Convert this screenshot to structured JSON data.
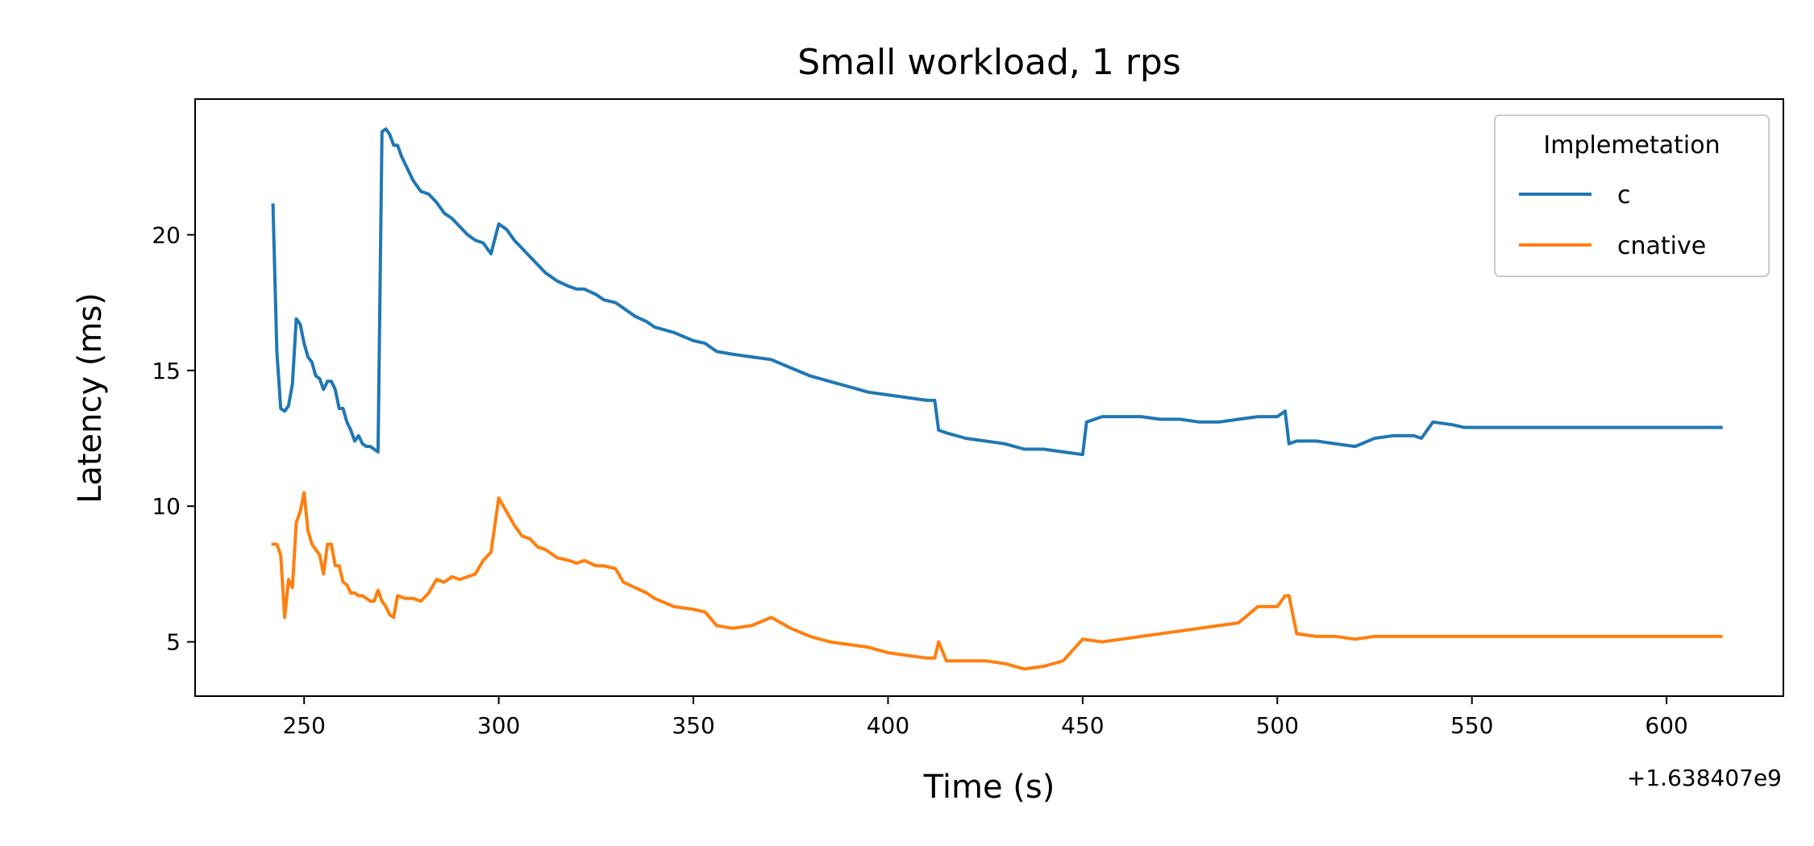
{
  "chart_data": {
    "type": "line",
    "title": "Small workload, 1 rps",
    "xlabel": "Time (s)",
    "ylabel": "Latency (ms)",
    "x_offset_label": "+1.638407e9",
    "xlim": [
      222,
      630
    ],
    "ylim": [
      3,
      25
    ],
    "xticks": [
      250,
      300,
      350,
      400,
      450,
      500,
      550,
      600
    ],
    "yticks": [
      5,
      10,
      15,
      20
    ],
    "grid": false,
    "legend": {
      "title": "Implemetation",
      "position": "top-right"
    },
    "series": [
      {
        "name": "c",
        "color": "#1f77b4",
        "x": [
          242,
          243,
          244,
          245,
          246,
          247,
          248,
          249,
          250,
          251,
          252,
          253,
          254,
          255,
          256,
          257,
          258,
          259,
          260,
          261,
          262,
          263,
          264,
          265,
          266,
          267,
          268,
          269,
          270,
          271,
          272,
          273,
          274,
          275,
          276,
          278,
          280,
          282,
          284,
          286,
          288,
          290,
          292,
          294,
          296,
          298,
          300,
          302,
          304,
          306,
          308,
          310,
          312,
          315,
          318,
          320,
          322,
          325,
          327,
          330,
          332,
          335,
          338,
          340,
          345,
          350,
          353,
          356,
          360,
          365,
          370,
          375,
          380,
          385,
          390,
          395,
          400,
          405,
          410,
          412,
          413,
          415,
          420,
          425,
          430,
          435,
          440,
          445,
          450,
          451,
          455,
          460,
          465,
          470,
          475,
          480,
          485,
          490,
          495,
          500,
          502,
          503,
          505,
          510,
          515,
          520,
          525,
          530,
          535,
          537,
          540,
          545,
          548,
          550,
          600,
          614
        ],
        "y": [
          21.1,
          15.7,
          13.6,
          13.5,
          13.7,
          14.5,
          16.9,
          16.7,
          16.0,
          15.5,
          15.3,
          14.8,
          14.7,
          14.3,
          14.6,
          14.6,
          14.3,
          13.6,
          13.6,
          13.1,
          12.8,
          12.4,
          12.6,
          12.3,
          12.2,
          12.2,
          12.1,
          12.0,
          23.8,
          23.9,
          23.7,
          23.3,
          23.3,
          22.9,
          22.6,
          22.0,
          21.6,
          21.5,
          21.2,
          20.8,
          20.6,
          20.3,
          20.0,
          19.8,
          19.7,
          19.3,
          20.4,
          20.2,
          19.8,
          19.5,
          19.2,
          18.9,
          18.6,
          18.3,
          18.1,
          18.0,
          18.0,
          17.8,
          17.6,
          17.5,
          17.3,
          17.0,
          16.8,
          16.6,
          16.4,
          16.1,
          16.0,
          15.7,
          15.6,
          15.5,
          15.4,
          15.1,
          14.8,
          14.6,
          14.4,
          14.2,
          14.1,
          14.0,
          13.9,
          13.9,
          12.8,
          12.7,
          12.5,
          12.4,
          12.3,
          12.1,
          12.1,
          12.0,
          11.9,
          13.1,
          13.3,
          13.3,
          13.3,
          13.2,
          13.2,
          13.1,
          13.1,
          13.2,
          13.3,
          13.3,
          13.5,
          12.3,
          12.4,
          12.4,
          12.3,
          12.2,
          12.5,
          12.6,
          12.6,
          12.5,
          13.1,
          13.0,
          12.9,
          12.9,
          12.9,
          12.9
        ]
      },
      {
        "name": "cnative",
        "color": "#ff7f0e",
        "x": [
          242,
          243,
          244,
          245,
          246,
          247,
          248,
          249,
          250,
          251,
          252,
          253,
          254,
          255,
          256,
          257,
          258,
          259,
          260,
          261,
          262,
          263,
          264,
          265,
          266,
          267,
          268,
          269,
          270,
          271,
          272,
          273,
          274,
          276,
          278,
          280,
          282,
          284,
          286,
          288,
          290,
          292,
          294,
          296,
          298,
          300,
          302,
          304,
          306,
          308,
          310,
          312,
          315,
          318,
          320,
          322,
          325,
          327,
          330,
          332,
          335,
          338,
          340,
          345,
          350,
          353,
          356,
          360,
          365,
          370,
          375,
          380,
          385,
          390,
          395,
          400,
          405,
          410,
          412,
          413,
          415,
          420,
          425,
          430,
          435,
          440,
          445,
          450,
          455,
          460,
          465,
          470,
          475,
          480,
          485,
          490,
          495,
          500,
          502,
          503,
          505,
          510,
          515,
          520,
          525,
          530,
          535,
          540,
          545,
          548,
          550,
          600,
          614
        ],
        "y": [
          8.6,
          8.6,
          8.2,
          5.9,
          7.3,
          7.0,
          9.4,
          9.8,
          10.5,
          9.1,
          8.6,
          8.4,
          8.2,
          7.5,
          8.6,
          8.6,
          7.8,
          7.8,
          7.2,
          7.1,
          6.8,
          6.8,
          6.7,
          6.7,
          6.6,
          6.5,
          6.5,
          6.9,
          6.5,
          6.3,
          6.0,
          5.9,
          6.7,
          6.6,
          6.6,
          6.5,
          6.8,
          7.3,
          7.2,
          7.4,
          7.3,
          7.4,
          7.5,
          8.0,
          8.3,
          10.3,
          9.8,
          9.3,
          8.9,
          8.8,
          8.5,
          8.4,
          8.1,
          8.0,
          7.9,
          8.0,
          7.8,
          7.8,
          7.7,
          7.2,
          7.0,
          6.8,
          6.6,
          6.3,
          6.2,
          6.1,
          5.6,
          5.5,
          5.6,
          5.9,
          5.5,
          5.2,
          5.0,
          4.9,
          4.8,
          4.6,
          4.5,
          4.4,
          4.4,
          5.0,
          4.3,
          4.3,
          4.3,
          4.2,
          4.0,
          4.1,
          4.3,
          5.1,
          5.0,
          5.1,
          5.2,
          5.3,
          5.4,
          5.5,
          5.6,
          5.7,
          6.3,
          6.3,
          6.7,
          6.7,
          5.3,
          5.2,
          5.2,
          5.1,
          5.2,
          5.2,
          5.2,
          5.2,
          5.2,
          5.2,
          5.2,
          5.2,
          5.2
        ]
      }
    ]
  }
}
